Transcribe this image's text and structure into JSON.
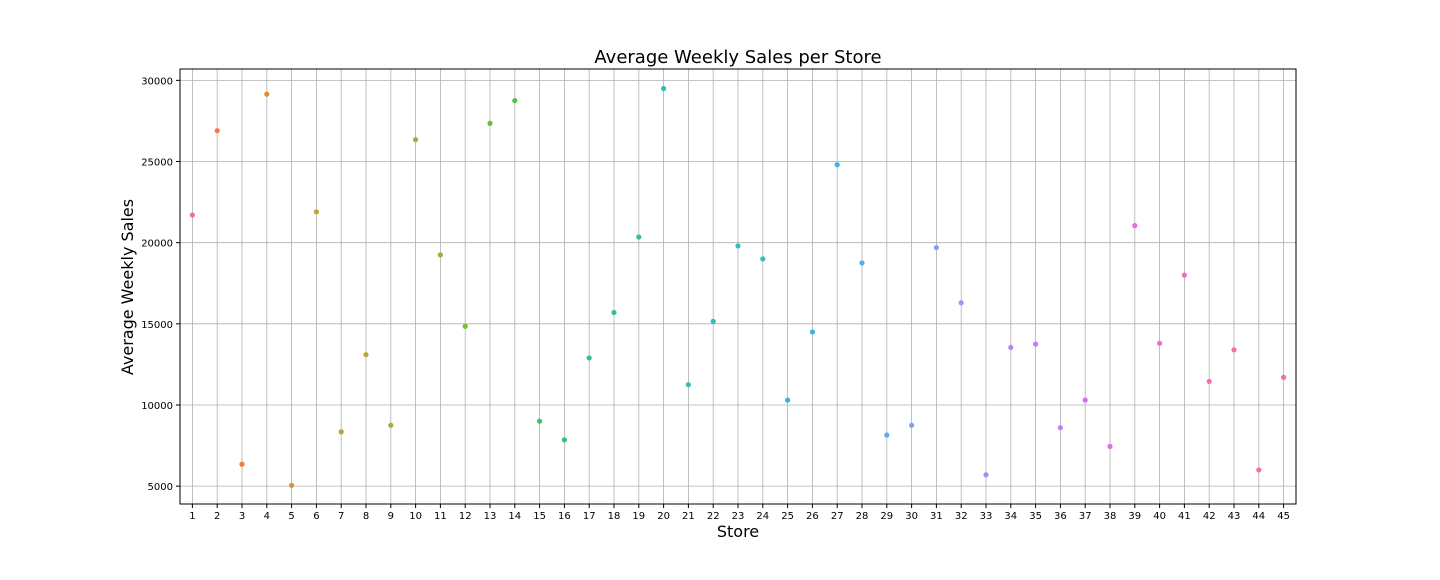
{
  "chart_data": {
    "type": "scatter",
    "title": "Average Weekly Sales per Store",
    "xlabel": "Store",
    "ylabel": "Average Weekly Sales",
    "ylim": [
      3900,
      30700
    ],
    "yticks": [
      5000,
      10000,
      15000,
      20000,
      25000,
      30000
    ],
    "grid": true,
    "legend": "none",
    "palette": "husl",
    "categories": [
      "1",
      "2",
      "3",
      "4",
      "5",
      "6",
      "7",
      "8",
      "9",
      "10",
      "11",
      "12",
      "13",
      "14",
      "15",
      "16",
      "17",
      "18",
      "19",
      "20",
      "21",
      "22",
      "23",
      "24",
      "25",
      "26",
      "27",
      "28",
      "29",
      "30",
      "31",
      "32",
      "33",
      "34",
      "35",
      "36",
      "37",
      "38",
      "39",
      "40",
      "41",
      "42",
      "43",
      "44",
      "45"
    ],
    "values": [
      21700,
      26900,
      6350,
      29150,
      5050,
      21900,
      8350,
      13100,
      8750,
      26350,
      19250,
      14850,
      27350,
      28750,
      9000,
      7850,
      12900,
      15700,
      20350,
      29500,
      11250,
      15150,
      19800,
      19000,
      10300,
      14500,
      24800,
      18750,
      8150,
      8750,
      19700,
      16300,
      5700,
      13550,
      13750,
      8600,
      10300,
      7450,
      21050,
      13800,
      18000,
      11450,
      13400,
      6000,
      11700
    ],
    "colors": [
      "#f77189",
      "#f7754f",
      "#f37e32",
      "#e68a32",
      "#d9933a",
      "#cd9b33",
      "#c0a233",
      "#b3a932",
      "#a5af34",
      "#98b535",
      "#89b937",
      "#79bd37",
      "#65c13a",
      "#4ec34a",
      "#3cc464",
      "#36c27c",
      "#36c08c",
      "#35bf97",
      "#35bea1",
      "#36bda9",
      "#36bcb1",
      "#37bbb9",
      "#38bac1",
      "#39b9c9",
      "#3ab8d2",
      "#3bb6dd",
      "#41b3e6",
      "#4fb0ea",
      "#61acf0",
      "#74a6f4",
      "#859ef6",
      "#9697f6",
      "#a48ff6",
      "#b286f5",
      "#bf7ef4",
      "#cb77f2",
      "#d470ed",
      "#de6ee4",
      "#e66fda",
      "#ec6ece",
      "#f16dc1",
      "#f46db5",
      "#f56ea8",
      "#f66f9c",
      "#f77190"
    ]
  }
}
